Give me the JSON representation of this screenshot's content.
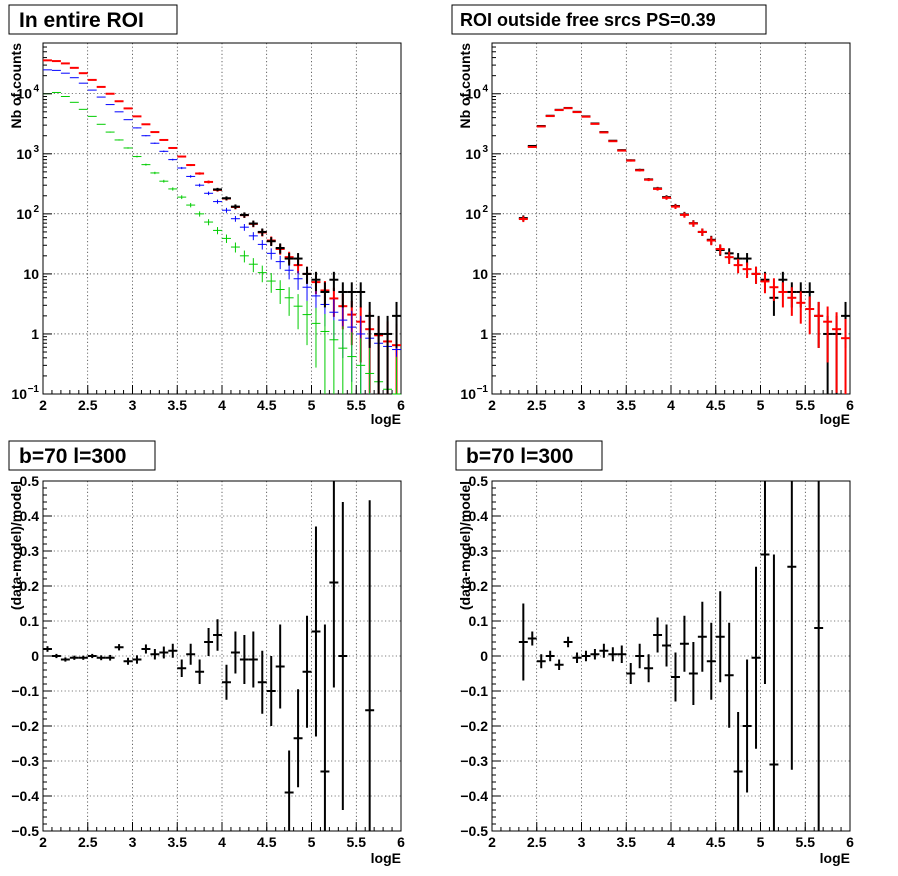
{
  "colors": {
    "data": "#000000",
    "total": "#ff0000",
    "model_a": "#0000ff",
    "model_b": "#00cc00"
  },
  "chart_data": [
    {
      "type": "scatter",
      "title": "In entire ROI",
      "xlabel": "logE",
      "ylabel": "Nb of counts",
      "xlim": [
        2,
        6
      ],
      "ylim": [
        0.1,
        70000
      ],
      "yscale": "log",
      "grid": true,
      "xticks": [
        "2",
        "2.5",
        "3",
        "3.5",
        "4",
        "4.5",
        "5",
        "5.5",
        "6"
      ],
      "yticks": [
        {
          "v": 0.1,
          "t": "10",
          "sup": "−1"
        },
        {
          "v": 1,
          "t": "1",
          "sup": ""
        },
        {
          "v": 10,
          "t": "10",
          "sup": ""
        },
        {
          "v": 100,
          "t": "10",
          "sup": "2"
        },
        {
          "v": 1000,
          "t": "10",
          "sup": "3"
        },
        {
          "v": 10000,
          "t": "10",
          "sup": "4"
        }
      ],
      "series": [
        {
          "color": "#ff0000",
          "width": 2,
          "x": [
            2.05,
            2.15,
            2.25,
            2.35,
            2.45,
            2.55,
            2.65,
            2.75,
            2.85,
            2.95,
            3.05,
            3.15,
            3.25,
            3.35,
            3.45,
            3.55,
            3.65,
            3.75,
            3.85,
            3.95,
            4.05,
            4.15,
            4.25,
            4.35,
            4.45,
            4.55,
            4.65,
            4.75,
            4.85,
            4.95,
            5.05,
            5.15,
            5.25,
            5.35,
            5.45,
            5.55,
            5.65,
            5.75,
            5.85,
            5.95
          ],
          "y": [
            36000,
            35000,
            32000,
            27000,
            22000,
            17000,
            13000,
            10000,
            7500,
            5700,
            4200,
            3100,
            2300,
            1700,
            1250,
            900,
            650,
            470,
            340,
            250,
            180,
            130,
            95,
            68,
            49,
            36,
            26,
            19,
            14,
            10,
            7.3,
            5.3,
            3.9,
            2.9,
            2.1,
            1.6,
            1.2,
            0.95,
            0.75,
            0.65
          ]
        },
        {
          "color": "#0000ff",
          "width": 1,
          "x": [
            2.05,
            2.15,
            2.25,
            2.35,
            2.45,
            2.55,
            2.65,
            2.75,
            2.85,
            2.95,
            3.05,
            3.15,
            3.25,
            3.35,
            3.45,
            3.55,
            3.65,
            3.75,
            3.85,
            3.95,
            4.05,
            4.15,
            4.25,
            4.35,
            4.45,
            4.55,
            4.65,
            4.75,
            4.85,
            4.95,
            5.05,
            5.15,
            5.25,
            5.35,
            5.45,
            5.55,
            5.65,
            5.75,
            5.85,
            5.95
          ],
          "y": [
            25000,
            24500,
            22000,
            18500,
            15000,
            11500,
            8800,
            6600,
            5000,
            3700,
            2700,
            2000,
            1500,
            1100,
            800,
            580,
            420,
            300,
            220,
            160,
            115,
            83,
            60,
            43,
            31,
            22,
            16,
            11.5,
            8.3,
            6,
            4.3,
            3.1,
            2.3,
            1.7,
            1.3,
            1,
            0.85,
            0.7,
            0.62,
            0.55
          ]
        },
        {
          "color": "#00cc00",
          "width": 1,
          "x": [
            2.05,
            2.15,
            2.25,
            2.35,
            2.45,
            2.55,
            2.65,
            2.75,
            2.85,
            2.95,
            3.05,
            3.15,
            3.25,
            3.35,
            3.45,
            3.55,
            3.65,
            3.75,
            3.85,
            3.95,
            4.05,
            4.15,
            4.25,
            4.35,
            4.45,
            4.55,
            4.65,
            4.75,
            4.85,
            4.95,
            5.05,
            5.15,
            5.25,
            5.35,
            5.45,
            5.55,
            5.65,
            5.75,
            5.85,
            5.95
          ],
          "y": [
            10000,
            10500,
            9000,
            7200,
            5500,
            4200,
            3100,
            2300,
            1700,
            1250,
            900,
            660,
            480,
            350,
            260,
            190,
            140,
            100,
            73,
            53,
            39,
            28,
            20,
            14.5,
            10.5,
            7.6,
            5.5,
            4,
            2.9,
            2.1,
            1.5,
            1.1,
            0.8,
            0.58,
            0.42,
            0.3,
            0.22,
            0.16,
            0.12,
            0.1
          ]
        },
        {
          "color": "#000000",
          "width": 2,
          "x": [
            3.95,
            4.05,
            4.15,
            4.25,
            4.35,
            4.45,
            4.55,
            4.65,
            4.75,
            4.85,
            4.95,
            5.05,
            5.15,
            5.25,
            5.35,
            5.45,
            5.55,
            5.65,
            5.75,
            5.85,
            5.95
          ],
          "y": [
            255,
            182,
            132,
            96,
            69,
            50,
            35,
            27,
            18,
            18,
            10,
            8,
            5,
            8,
            5,
            5,
            5,
            2,
            1,
            1,
            2
          ]
        }
      ]
    },
    {
      "type": "scatter",
      "title": "ROI outside free srcs PS=0.39",
      "xlabel": "logE",
      "ylabel": "Nb of counts",
      "xlim": [
        2,
        6
      ],
      "ylim": [
        0.1,
        70000
      ],
      "yscale": "log",
      "grid": true,
      "xticks": [
        "2",
        "2.5",
        "3",
        "3.5",
        "4",
        "4.5",
        "5",
        "5.5",
        "6"
      ],
      "yticks": [
        {
          "v": 0.1,
          "t": "10",
          "sup": "−1"
        },
        {
          "v": 1,
          "t": "1",
          "sup": ""
        },
        {
          "v": 10,
          "t": "10",
          "sup": ""
        },
        {
          "v": 100,
          "t": "10",
          "sup": "2"
        },
        {
          "v": 1000,
          "t": "10",
          "sup": "3"
        },
        {
          "v": 10000,
          "t": "10",
          "sup": "4"
        }
      ],
      "series": [
        {
          "color": "#000000",
          "width": 2,
          "x": [
            2.35,
            2.45,
            2.55,
            2.65,
            2.75,
            2.85,
            2.95,
            3.05,
            3.15,
            3.25,
            3.35,
            3.45,
            3.55,
            3.65,
            3.75,
            3.85,
            3.95,
            4.05,
            4.15,
            4.25,
            4.35,
            4.45,
            4.55,
            4.65,
            4.75,
            4.85,
            4.95,
            5.05,
            5.15,
            5.25,
            5.35,
            5.45,
            5.55,
            5.65,
            5.75,
            5.85,
            5.95
          ],
          "y": [
            85,
            1350,
            2900,
            4300,
            5400,
            5800,
            5000,
            4200,
            3200,
            2300,
            1650,
            1150,
            780,
            540,
            375,
            265,
            190,
            135,
            98,
            70,
            50,
            37,
            25,
            22,
            18,
            18,
            10,
            8,
            4,
            8,
            5,
            5,
            5,
            2,
            1,
            1,
            2
          ]
        },
        {
          "color": "#ff0000",
          "width": 2,
          "x": [
            2.35,
            2.45,
            2.55,
            2.65,
            2.75,
            2.85,
            2.95,
            3.05,
            3.15,
            3.25,
            3.35,
            3.45,
            3.55,
            3.65,
            3.75,
            3.85,
            3.95,
            4.05,
            4.15,
            4.25,
            4.35,
            4.45,
            4.55,
            4.65,
            4.75,
            4.85,
            4.95,
            5.05,
            5.15,
            5.25,
            5.35,
            5.45,
            5.55,
            5.65,
            5.75,
            5.85,
            5.95
          ],
          "y": [
            82,
            1300,
            2850,
            4250,
            5350,
            5750,
            4950,
            4150,
            3150,
            2270,
            1620,
            1130,
            770,
            530,
            370,
            260,
            185,
            132,
            96,
            69,
            50,
            36,
            26,
            19,
            14,
            12,
            10,
            7.5,
            6,
            5,
            4,
            3.3,
            2.6,
            2,
            1.6,
            1.2,
            0.85
          ]
        }
      ]
    },
    {
      "type": "scatter",
      "title": "b=70 l=300",
      "xlabel": "logE",
      "ylabel": "(data-model)/model",
      "xlim": [
        2,
        6
      ],
      "ylim": [
        -0.5,
        0.5
      ],
      "yscale": "linear",
      "grid": true,
      "xticks": [
        "2",
        "2.5",
        "3",
        "3.5",
        "4",
        "4.5",
        "5",
        "5.5",
        "6"
      ],
      "yticks": [
        {
          "v": -0.5,
          "t": "−0.5",
          "sup": ""
        },
        {
          "v": -0.4,
          "t": "−0.4",
          "sup": ""
        },
        {
          "v": -0.3,
          "t": "−0.3",
          "sup": ""
        },
        {
          "v": -0.2,
          "t": "−0.2",
          "sup": ""
        },
        {
          "v": -0.1,
          "t": "−0.1",
          "sup": ""
        },
        {
          "v": 0,
          "t": "0",
          "sup": ""
        },
        {
          "v": 0.1,
          "t": "0.1",
          "sup": ""
        },
        {
          "v": 0.2,
          "t": "0.2",
          "sup": ""
        },
        {
          "v": 0.3,
          "t": "0.3",
          "sup": ""
        },
        {
          "v": 0.4,
          "t": "0.4",
          "sup": ""
        },
        {
          "v": 0.5,
          "t": "0.5",
          "sup": ""
        }
      ],
      "series": [
        {
          "color": "#000000",
          "width": 2,
          "x": [
            2.05,
            2.15,
            2.25,
            2.35,
            2.45,
            2.55,
            2.65,
            2.75,
            2.85,
            2.95,
            3.05,
            3.15,
            3.25,
            3.35,
            3.45,
            3.55,
            3.65,
            3.75,
            3.85,
            3.95,
            4.05,
            4.15,
            4.25,
            4.35,
            4.45,
            4.55,
            4.65,
            4.75,
            4.85,
            4.95,
            5.05,
            5.15,
            5.25,
            5.35,
            5.65
          ],
          "y": [
            0.02,
            0.0,
            -0.01,
            -0.005,
            -0.005,
            0.0,
            -0.005,
            -0.005,
            0.025,
            -0.015,
            -0.01,
            0.02,
            0.005,
            0.01,
            0.015,
            -0.035,
            0.005,
            -0.045,
            0.04,
            0.06,
            -0.075,
            0.01,
            -0.01,
            -0.01,
            -0.075,
            -0.1,
            -0.03,
            -0.39,
            -0.235,
            -0.045,
            0.07,
            -0.33,
            0.21,
            0.0,
            -0.155
          ],
          "err": [
            0.008,
            0.006,
            0.006,
            0.006,
            0.006,
            0.006,
            0.007,
            0.008,
            0.009,
            0.01,
            0.012,
            0.013,
            0.015,
            0.017,
            0.02,
            0.025,
            0.03,
            0.035,
            0.04,
            0.045,
            0.05,
            0.06,
            0.07,
            0.08,
            0.09,
            0.1,
            0.12,
            0.12,
            0.14,
            0.16,
            0.3,
            0.42,
            0.3,
            0.44,
            0.6
          ]
        }
      ]
    },
    {
      "type": "scatter",
      "title": "b=70 l=300",
      "xlabel": "logE",
      "ylabel": "(data-model)/model",
      "xlim": [
        2,
        6
      ],
      "ylim": [
        -0.5,
        0.5
      ],
      "yscale": "linear",
      "grid": true,
      "xticks": [
        "2",
        "2.5",
        "3",
        "3.5",
        "4",
        "4.5",
        "5",
        "5.5",
        "6"
      ],
      "yticks": [
        {
          "v": -0.5,
          "t": "−0.5",
          "sup": ""
        },
        {
          "v": -0.4,
          "t": "−0.4",
          "sup": ""
        },
        {
          "v": -0.3,
          "t": "−0.3",
          "sup": ""
        },
        {
          "v": -0.2,
          "t": "−0.2",
          "sup": ""
        },
        {
          "v": -0.1,
          "t": "−0.1",
          "sup": ""
        },
        {
          "v": 0,
          "t": "0",
          "sup": ""
        },
        {
          "v": 0.1,
          "t": "0.1",
          "sup": ""
        },
        {
          "v": 0.2,
          "t": "0.2",
          "sup": ""
        },
        {
          "v": 0.3,
          "t": "0.3",
          "sup": ""
        },
        {
          "v": 0.4,
          "t": "0.4",
          "sup": ""
        },
        {
          "v": 0.5,
          "t": "0.5",
          "sup": ""
        }
      ],
      "series": [
        {
          "color": "#000000",
          "width": 2,
          "x": [
            2.35,
            2.45,
            2.55,
            2.65,
            2.75,
            2.85,
            2.95,
            3.05,
            3.15,
            3.25,
            3.35,
            3.45,
            3.55,
            3.65,
            3.75,
            3.85,
            3.95,
            4.05,
            4.15,
            4.25,
            4.35,
            4.45,
            4.55,
            4.65,
            4.75,
            4.85,
            4.95,
            5.05,
            5.15,
            5.35,
            5.65
          ],
          "y": [
            0.04,
            0.05,
            -0.015,
            0.0,
            -0.025,
            0.04,
            -0.005,
            0.0,
            0.005,
            0.015,
            0.005,
            0.005,
            -0.05,
            0.0,
            -0.035,
            0.06,
            0.03,
            -0.06,
            0.035,
            -0.05,
            0.055,
            -0.015,
            0.055,
            -0.055,
            -0.33,
            -0.2,
            -0.005,
            0.29,
            -0.31,
            0.255,
            0.08
          ],
          "err": [
            0.11,
            0.02,
            0.02,
            0.015,
            0.015,
            0.015,
            0.015,
            0.015,
            0.015,
            0.02,
            0.02,
            0.025,
            0.03,
            0.035,
            0.04,
            0.05,
            0.06,
            0.07,
            0.08,
            0.09,
            0.1,
            0.11,
            0.13,
            0.15,
            0.17,
            0.19,
            0.26,
            0.37,
            0.6,
            0.58,
            0.7
          ]
        }
      ]
    }
  ]
}
